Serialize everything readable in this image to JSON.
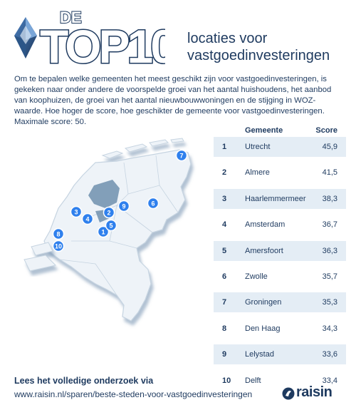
{
  "header": {
    "logo_small": "DE",
    "logo_big": "TOP10",
    "headline_line1": "locaties voor",
    "headline_line2": "vastgoedinvesteringen"
  },
  "intro": "Om te bepalen welke gemeenten het meest geschikt zijn voor vastgoedinvesteringen, is gekeken naar onder andere de voorspelde groei van het aantal huishoudens, het aanbod van koophuizen, de groei van het aantal nieuwbouwwoningen en de stijging in WOZ-waarde. Hoe hoger de score, hoe geschikter de gemeente voor vastgoedinvesteringen. Maximale score: 50.",
  "map": {
    "pins": [
      "1",
      "2",
      "3",
      "4",
      "5",
      "6",
      "7",
      "8",
      "9",
      "10"
    ],
    "colors": {
      "land": "#eef3f8",
      "border": "#c6d4e1",
      "pin": "#2f80ed",
      "water": "#6f8fae"
    }
  },
  "table": {
    "headers": {
      "name": "Gemeente",
      "score": "Score"
    },
    "rows": [
      {
        "rank": "1",
        "name": "Utrecht",
        "score": "45,9"
      },
      {
        "rank": "2",
        "name": "Almere",
        "score": "41,5"
      },
      {
        "rank": "3",
        "name": "Haarlemmermeer",
        "score": "38,3"
      },
      {
        "rank": "4",
        "name": "Amsterdam",
        "score": "36,7"
      },
      {
        "rank": "5",
        "name": "Amersfoort",
        "score": "36,3"
      },
      {
        "rank": "6",
        "name": "Zwolle",
        "score": "35,7"
      },
      {
        "rank": "7",
        "name": "Groningen",
        "score": "35,3"
      },
      {
        "rank": "8",
        "name": "Den Haag",
        "score": "34,3"
      },
      {
        "rank": "9",
        "name": "Lelystad",
        "score": "33,6"
      },
      {
        "rank": "10",
        "name": "Delft",
        "score": "33,4"
      }
    ]
  },
  "footer": {
    "label": "Lees het volledige onderzoek via",
    "url": "www.raisin.nl/sparen/beste-steden-voor-vastgoedinvesteringen",
    "brand": "raisin",
    "brand_icon": "raisin-logo-icon"
  }
}
